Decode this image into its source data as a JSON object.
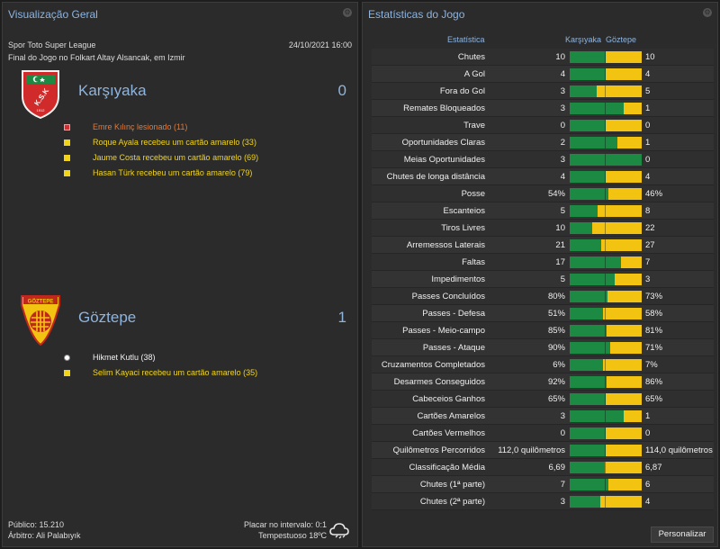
{
  "overview": {
    "title": "Visualização Geral",
    "league": "Spor Toto Super League",
    "datetime": "24/10/2021 16:00",
    "venue": "Final do Jogo no Folkart Altay Alsancak, em Izmir",
    "home": {
      "name": "Karşıyaka",
      "score": "0",
      "logo_text": "K.S.K",
      "logo_year": "1912",
      "events": [
        {
          "type": "injury",
          "text": "Emre Kılınç lesionado (11)"
        },
        {
          "type": "yellow",
          "text": "Roque Ayala recebeu um cartão amarelo (33)"
        },
        {
          "type": "yellow",
          "text": "Jaume Costa recebeu um cartão amarelo (69)"
        },
        {
          "type": "yellow",
          "text": "Hasan Türk recebeu um cartão amarelo (79)"
        }
      ]
    },
    "away": {
      "name": "Göztepe",
      "score": "1",
      "logo_text": "GÖZTEPE",
      "events": [
        {
          "type": "goal",
          "text": "Hikmet Kutlu (38)"
        },
        {
          "type": "yellow",
          "text": "Selim Kayaci recebeu um cartão amarelo (35)"
        }
      ]
    },
    "attendance": "Público: 15.210",
    "referee": "Árbitro: Ali Palabıyık",
    "halftime": "Placar no intervalo: 0:1",
    "weather": "Tempestuoso 18ºC",
    "weather_icon": "storm-cloud-icon"
  },
  "stats": {
    "title": "Estatísticas do Jogo",
    "header_label": "Estatística",
    "header_home": "Karşıyaka",
    "header_away": "Göztepe",
    "colors": {
      "home": "#1d8a43",
      "away": "#f2c310"
    },
    "rows": [
      {
        "label": "Chutes",
        "home": "10",
        "away": "10",
        "home_share": 0.5
      },
      {
        "label": "A Gol",
        "home": "4",
        "away": "4",
        "home_share": 0.5
      },
      {
        "label": "Fora do Gol",
        "home": "3",
        "away": "5",
        "home_share": 0.375
      },
      {
        "label": "Remates Bloqueados",
        "home": "3",
        "away": "1",
        "home_share": 0.75
      },
      {
        "label": "Trave",
        "home": "0",
        "away": "0",
        "home_share": 0.5
      },
      {
        "label": "Oportunidades Claras",
        "home": "2",
        "away": "1",
        "home_share": 0.667
      },
      {
        "label": "Meias Oportunidades",
        "home": "3",
        "away": "0",
        "home_share": 1.0
      },
      {
        "label": "Chutes de longa distância",
        "home": "4",
        "away": "4",
        "home_share": 0.5
      },
      {
        "label": "Posse",
        "home": "54%",
        "away": "46%",
        "home_share": 0.54
      },
      {
        "label": "Escanteios",
        "home": "5",
        "away": "8",
        "home_share": 0.385
      },
      {
        "label": "Tiros Livres",
        "home": "10",
        "away": "22",
        "home_share": 0.3125
      },
      {
        "label": "Arremessos Laterais",
        "home": "21",
        "away": "27",
        "home_share": 0.4375
      },
      {
        "label": "Faltas",
        "home": "17",
        "away": "7",
        "home_share": 0.708
      },
      {
        "label": "Impedimentos",
        "home": "5",
        "away": "3",
        "home_share": 0.625
      },
      {
        "label": "Passes Concluídos",
        "home": "80%",
        "away": "73%",
        "home_share": 0.523
      },
      {
        "label": "Passes - Defesa",
        "home": "51%",
        "away": "58%",
        "home_share": 0.468
      },
      {
        "label": "Passes - Meio-campo",
        "home": "85%",
        "away": "81%",
        "home_share": 0.512
      },
      {
        "label": "Passes - Ataque",
        "home": "90%",
        "away": "71%",
        "home_share": 0.559
      },
      {
        "label": "Cruzamentos Completados",
        "home": "6%",
        "away": "7%",
        "home_share": 0.462
      },
      {
        "label": "Desarmes Conseguidos",
        "home": "92%",
        "away": "86%",
        "home_share": 0.517
      },
      {
        "label": "Cabeceios Ganhos",
        "home": "65%",
        "away": "65%",
        "home_share": 0.5
      },
      {
        "label": "Cartões Amarelos",
        "home": "3",
        "away": "1",
        "home_share": 0.75
      },
      {
        "label": "Cartões Vermelhos",
        "home": "0",
        "away": "0",
        "home_share": 0.5
      },
      {
        "label": "Quilômetros Percorridos",
        "home": "112,0 quilômetros",
        "away": "114,0 quilômetros",
        "home_share": 0.496
      },
      {
        "label": "Classificação Média",
        "home": "6,69",
        "away": "6,87",
        "home_share": 0.493
      },
      {
        "label": "Chutes (1ª parte)",
        "home": "7",
        "away": "6",
        "home_share": 0.538
      },
      {
        "label": "Chutes (2ª parte)",
        "home": "3",
        "away": "4",
        "home_share": 0.429
      }
    ],
    "customize_label": "Personalizar"
  }
}
